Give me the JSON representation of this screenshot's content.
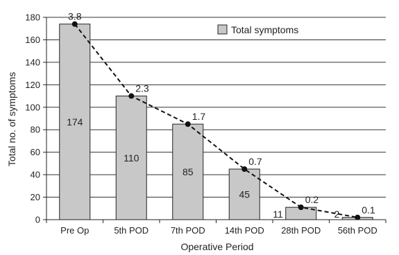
{
  "chart_data": {
    "type": "bar",
    "categories": [
      "Pre Op",
      "5th POD",
      "7th POD",
      "14th POD",
      "28th POD",
      "56th POD"
    ],
    "series": [
      {
        "name": "Total symptoms",
        "values": [
          174,
          110,
          85,
          45,
          11,
          2
        ]
      }
    ],
    "line_series": {
      "values": [
        174,
        110,
        85,
        45,
        11,
        2
      ],
      "labels": [
        "3.8",
        "2.3",
        "1.7",
        "0.7",
        "0.2",
        "0.1"
      ]
    },
    "xlabel": "Operative Period",
    "ylabel": "Total no. of symptoms",
    "ylim": [
      0,
      180
    ],
    "yticks": [
      "0",
      "20",
      "40",
      "60",
      "80",
      "100",
      "120",
      "140",
      "160",
      "180"
    ],
    "grid": true,
    "legend": "top-right",
    "colors": {
      "bar_fill": "#c8c8c8",
      "bar_stroke": "#222222",
      "line": "#111111",
      "grid": "#333333"
    }
  }
}
